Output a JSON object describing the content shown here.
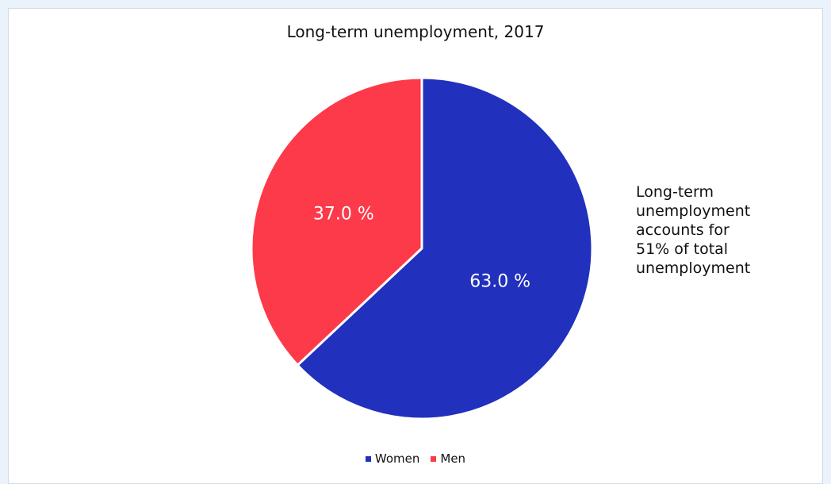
{
  "chart_data": {
    "type": "pie",
    "title": "Long-term unemployment, 2017",
    "slices": [
      {
        "name": "Women",
        "value": 63.0,
        "label": "63.0 %",
        "color": "#2130bd"
      },
      {
        "name": "Men",
        "value": 37.0,
        "label": "37.0 %",
        "color": "#fd3a4a"
      }
    ],
    "annotation_lines": [
      "Long-term",
      "unemployment",
      "accounts for",
      "51% of total",
      "unemployment"
    ],
    "legend_placement": "bottom"
  },
  "colors": {
    "background": "#eaf2fb",
    "panel": "#ffffff",
    "women": "#2130bd",
    "men": "#fd3a4a"
  }
}
